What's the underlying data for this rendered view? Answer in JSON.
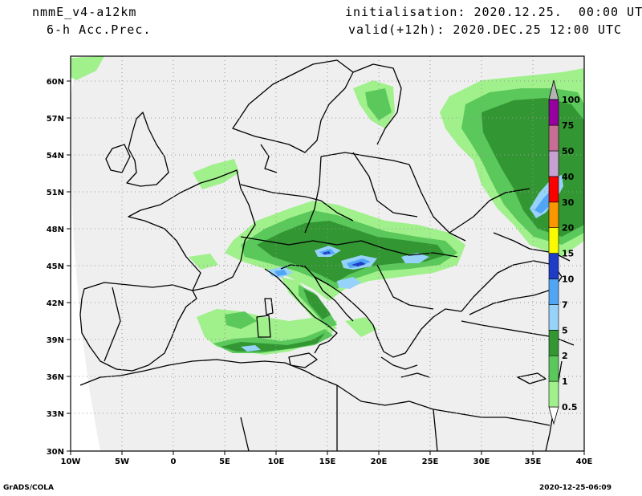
{
  "header": {
    "model": "nmmE_v4-a12km",
    "field": "6-h Acc.Prec.",
    "initialisation": "initialisation: 2020.12.25.  00:00 UTC",
    "valid": "valid(+12h): 2020.DEC.25 12:00 UTC"
  },
  "map": {
    "lon_labels": [
      "10W",
      "5W",
      "0",
      "5E",
      "10E",
      "15E",
      "20E",
      "25E",
      "30E",
      "35E",
      "40E"
    ],
    "lat_labels": [
      "60N",
      "57N",
      "54N",
      "51N",
      "48N",
      "45N",
      "42N",
      "39N",
      "36N",
      "33N",
      "30N"
    ]
  },
  "legend": {
    "levels": [
      "0.5",
      "1",
      "2",
      "5",
      "7",
      "10",
      "15",
      "20",
      "30",
      "40",
      "50",
      "75",
      "100"
    ],
    "colors": [
      "#a0f08c",
      "#5ac85a",
      "#329632",
      "#96d2fa",
      "#50a5f5",
      "#1e3cc8",
      "#fafa00",
      "#fa9600",
      "#fa0000",
      "#c8a0d2",
      "#c86e96",
      "#9600a0",
      "#b4b4b4"
    ]
  },
  "footer": {
    "left": "GrADS/COLA",
    "right": "2020-12-25-06:09"
  }
}
